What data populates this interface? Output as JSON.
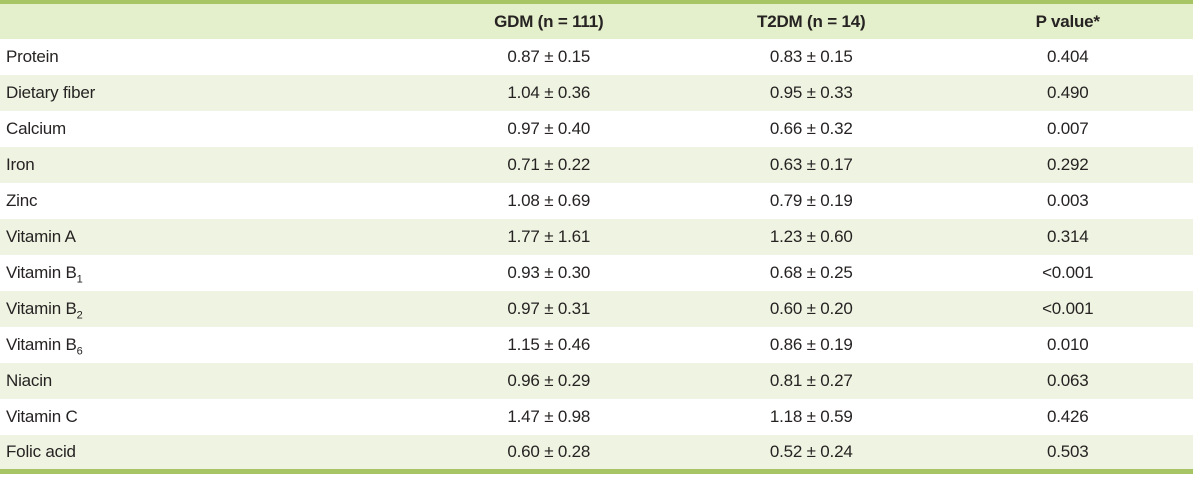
{
  "table": {
    "columns": [
      {
        "label": ""
      },
      {
        "label": "GDM (n = 111)"
      },
      {
        "label": "T2DM (n = 14)"
      },
      {
        "label": "P value*"
      }
    ],
    "rows": [
      {
        "label": "Protein",
        "label_sub": "",
        "gdm": "0.87 ± 0.15",
        "t2dm": "0.83 ± 0.15",
        "p": "0.404"
      },
      {
        "label": "Dietary fiber",
        "label_sub": "",
        "gdm": "1.04 ± 0.36",
        "t2dm": "0.95 ± 0.33",
        "p": "0.490"
      },
      {
        "label": "Calcium",
        "label_sub": "",
        "gdm": "0.97 ± 0.40",
        "t2dm": "0.66 ± 0.32",
        "p": "0.007"
      },
      {
        "label": "Iron",
        "label_sub": "",
        "gdm": "0.71 ± 0.22",
        "t2dm": "0.63 ± 0.17",
        "p": "0.292"
      },
      {
        "label": "Zinc",
        "label_sub": "",
        "gdm": "1.08 ± 0.69",
        "t2dm": "0.79 ± 0.19",
        "p": "0.003"
      },
      {
        "label": "Vitamin A",
        "label_sub": "",
        "gdm": "1.77 ± 1.61",
        "t2dm": "1.23 ± 0.60",
        "p": "0.314"
      },
      {
        "label": "Vitamin B",
        "label_sub": "1",
        "gdm": "0.93 ± 0.30",
        "t2dm": "0.68 ± 0.25",
        "p": "<0.001"
      },
      {
        "label": "Vitamin B",
        "label_sub": "2",
        "gdm": "0.97 ± 0.31",
        "t2dm": "0.60 ± 0.20",
        "p": "<0.001"
      },
      {
        "label": "Vitamin B",
        "label_sub": "6",
        "gdm": "1.15 ± 0.46",
        "t2dm": "0.86 ± 0.19",
        "p": "0.010"
      },
      {
        "label": "Niacin",
        "label_sub": "",
        "gdm": "0.96 ± 0.29",
        "t2dm": "0.81 ± 0.27",
        "p": "0.063"
      },
      {
        "label": "Vitamin C",
        "label_sub": "",
        "gdm": "1.47 ± 0.98",
        "t2dm": "1.18 ± 0.59",
        "p": "0.426"
      },
      {
        "label": "Folic acid",
        "label_sub": "",
        "gdm": "0.60 ± 0.28",
        "t2dm": "0.52 ± 0.24",
        "p": "0.503"
      }
    ],
    "colors": {
      "border_green": "#a8c565",
      "header_bg": "#e4efcb",
      "row_alt_bg": "#eff3e2",
      "text": "#262322"
    }
  }
}
